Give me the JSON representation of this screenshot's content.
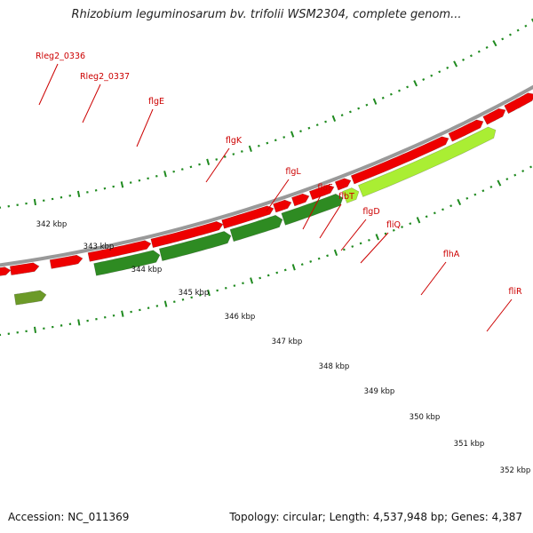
{
  "title": "Rhizobium leguminosarum bv. trifolii WSM2304, complete genom...",
  "footer": {
    "accession": "Accession: NC_011369",
    "summary": "Topology: circular; Length: 4,537,948 bp; Genes: 4,387"
  },
  "colors": {
    "reverse_gene": "#ee0000",
    "forward_gene": "#2e8b22",
    "forward_gene_light": "#aaee33",
    "label": "#cc0000",
    "backbone": "#999999",
    "tick": "#1f8a1f"
  },
  "kbp_ticks": [
    "342 kbp",
    "343 kbp",
    "344 kbp",
    "345 kbp",
    "346 kbp",
    "347 kbp",
    "348 kbp",
    "349 kbp",
    "350 kbp",
    "351 kbp",
    "352 kbp"
  ],
  "gene_labels": [
    "Rleg2_0336",
    "Rleg2_0337",
    "flgE",
    "flgK",
    "flgL",
    "flaF",
    "flbT",
    "flgD",
    "fliQ",
    "flhA",
    "fliR"
  ]
}
